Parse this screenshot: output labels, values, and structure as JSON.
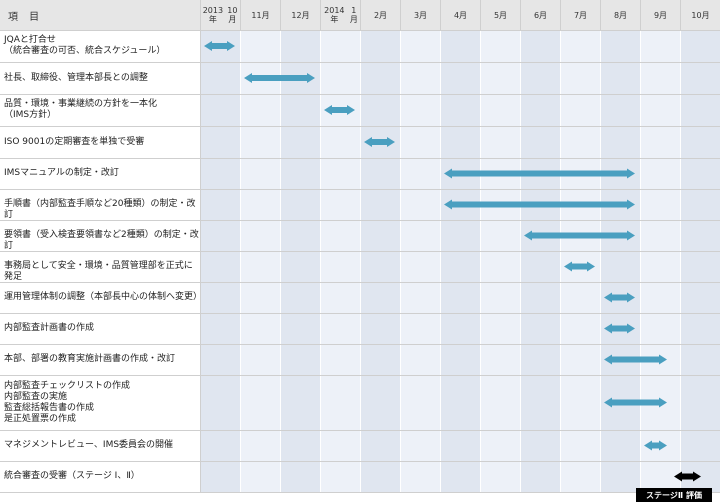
{
  "header": {
    "item_title": "項 目",
    "months": [
      [
        "2013年",
        "10月"
      ],
      [
        "11月"
      ],
      [
        "12月"
      ],
      [
        "2014年",
        "1月"
      ],
      [
        "2月"
      ],
      [
        "3月"
      ],
      [
        "4月"
      ],
      [
        "5月"
      ],
      [
        "6月"
      ],
      [
        "7月"
      ],
      [
        "8月"
      ],
      [
        "9月"
      ],
      [
        "10月"
      ]
    ]
  },
  "colors": {
    "bar": "#4a9fc0",
    "stage_bar": "#000000",
    "col_light": "#edf1f8",
    "col_dark": "#e0e6f0",
    "header_bg": "#e6e6e6"
  },
  "tasks": [
    {
      "label": [
        "JQAと打合せ",
        "（統合審査の可否、統合スケジュール）"
      ],
      "start": 0,
      "end": 0.85
    },
    {
      "label": [
        "社長、取締役、管理本部長との調整"
      ],
      "start": 1.0,
      "end": 2.85
    },
    {
      "label": [
        "品質・環境・事業継続の方針を一本化",
        "（IMS方針）"
      ],
      "start": 3.0,
      "end": 3.85
    },
    {
      "label": [
        "ISO 9001の定期審査を単独で受審"
      ],
      "start": 4.0,
      "end": 4.85
    },
    {
      "label": [
        "IMSマニュアルの制定・改訂"
      ],
      "start": 6.0,
      "end": 10.85
    },
    {
      "label": [
        "手順書（内部監査手順など20種類）の制定・改訂"
      ],
      "start": 6.0,
      "end": 10.85
    },
    {
      "label": [
        "要領書（受入検査要領書など2種類）の制定・改訂"
      ],
      "start": 8.0,
      "end": 10.85
    },
    {
      "label": [
        "事務局として安全・環境・品質管理部を正式に発足"
      ],
      "start": 9.0,
      "end": 9.85
    },
    {
      "label": [
        "運用管理体制の調整（本部長中心の体制へ変更）"
      ],
      "start": 10.0,
      "end": 10.85
    },
    {
      "label": [
        "内部監査計画書の作成"
      ],
      "start": 10.0,
      "end": 10.85
    },
    {
      "label": [
        "本部、部署の教育実施計画書の作成・改訂"
      ],
      "start": 10.0,
      "end": 11.65
    },
    {
      "label": [
        "内部監査チェックリストの作成",
        "内部監査の実施",
        "監査総括報告書の作成",
        "是正処置票の作成"
      ],
      "start": 10.0,
      "end": 11.65
    },
    {
      "label": [
        "マネジメントレビュー、IMS委員会の開催"
      ],
      "start": 11.0,
      "end": 11.65
    },
    {
      "label": [
        "統合審査の受審（ステージ Ⅰ、Ⅱ）"
      ],
      "start": 11.75,
      "end": 12.5,
      "stage": true
    }
  ],
  "stage_badge": "ステージⅡ 評価"
}
